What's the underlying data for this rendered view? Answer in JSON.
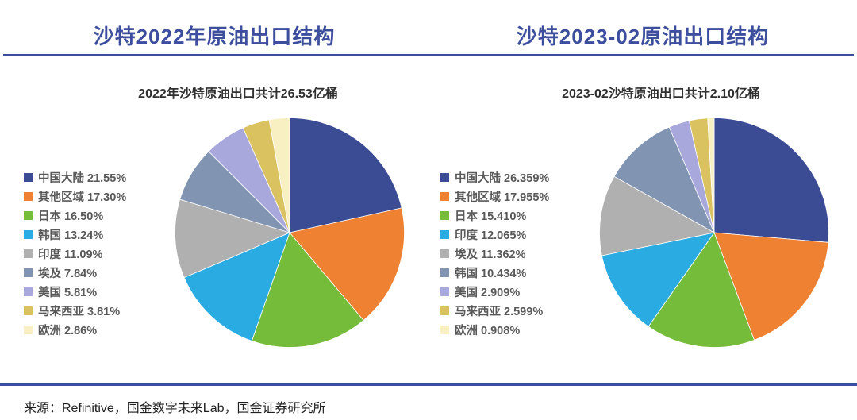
{
  "page": {
    "accent_color": "#3D4EA0",
    "background_color": "#FFFFFF"
  },
  "header": {
    "left_title": "沙特2022年原油出口结构",
    "right_title": "沙特2023-02原油出口结构"
  },
  "footer": {
    "source": "来源：Refinitive，国金数字未来Lab，国金证券研究所"
  },
  "chart_data": [
    {
      "type": "pie",
      "title": "2022年沙特原油出口共计26.53亿桶",
      "legend_position": "left",
      "start_angle": "12-oclock-clockwise",
      "slices": [
        {
          "label": "中国大陆",
          "pct": 21.55,
          "display": "21.55%",
          "color": "#3C4C94"
        },
        {
          "label": "其他区域",
          "pct": 17.3,
          "display": "17.30%",
          "color": "#EE8132"
        },
        {
          "label": "日本",
          "pct": 16.5,
          "display": "16.50%",
          "color": "#76BC3B"
        },
        {
          "label": "韩国",
          "pct": 13.24,
          "display": "13.24%",
          "color": "#2AACE2"
        },
        {
          "label": "印度",
          "pct": 11.09,
          "display": "11.09%",
          "color": "#B0B0B1"
        },
        {
          "label": "埃及",
          "pct": 7.84,
          "display": "7.84%",
          "color": "#8195B2"
        },
        {
          "label": "美国",
          "pct": 5.81,
          "display": "5.81%",
          "color": "#A8A8DC"
        },
        {
          "label": "马来西亚",
          "pct": 3.81,
          "display": "3.81%",
          "color": "#D9C25F"
        },
        {
          "label": "欧洲",
          "pct": 2.86,
          "display": "2.86%",
          "color": "#F8EFC2"
        }
      ]
    },
    {
      "type": "pie",
      "title": "2023-02沙特原油出口共计2.10亿桶",
      "legend_position": "left",
      "start_angle": "12-oclock-clockwise",
      "slices": [
        {
          "label": "中国大陆",
          "pct": 26.359,
          "display": "26.359%",
          "color": "#3C4C94"
        },
        {
          "label": "其他区域",
          "pct": 17.955,
          "display": "17.955%",
          "color": "#EE8132"
        },
        {
          "label": "日本",
          "pct": 15.41,
          "display": "15.410%",
          "color": "#76BC3B"
        },
        {
          "label": "印度",
          "pct": 12.065,
          "display": "12.065%",
          "color": "#2AACE2"
        },
        {
          "label": "埃及",
          "pct": 11.362,
          "display": "11.362%",
          "color": "#B0B0B1"
        },
        {
          "label": "韩国",
          "pct": 10.434,
          "display": "10.434%",
          "color": "#8195B2"
        },
        {
          "label": "美国",
          "pct": 2.909,
          "display": "2.909%",
          "color": "#A8A8DC"
        },
        {
          "label": "马来西亚",
          "pct": 2.599,
          "display": "2.599%",
          "color": "#D9C25F"
        },
        {
          "label": "欧洲",
          "pct": 0.908,
          "display": "0.908%",
          "color": "#F8EFC2"
        }
      ]
    }
  ]
}
